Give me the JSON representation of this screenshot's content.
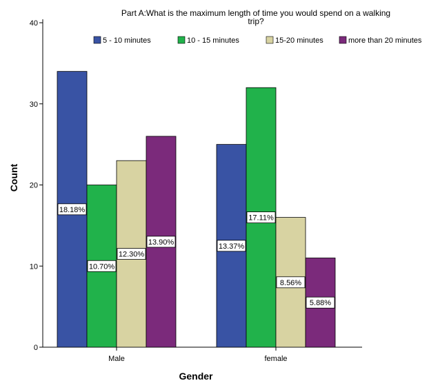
{
  "chart_data": {
    "type": "bar",
    "title_lines": [
      "Part A:What is the maximum length of time you would spend on a walking",
      "trip?"
    ],
    "xlabel": "Gender",
    "ylabel": "Count",
    "categories": [
      "Male",
      "female"
    ],
    "ylim": [
      0,
      40
    ],
    "yticks": [
      0,
      10,
      20,
      30,
      40
    ],
    "legend_position": "top",
    "grid": false,
    "series": [
      {
        "name": "5 - 10 minutes",
        "color": "#3953a4",
        "values": [
          34,
          25
        ],
        "labels": [
          "18.18%",
          "13.37%"
        ]
      },
      {
        "name": "10 - 15 minutes",
        "color": "#21b24b",
        "values": [
          20,
          32
        ],
        "labels": [
          "10.70%",
          "17.11%"
        ]
      },
      {
        "name": "15-20 minutes",
        "color": "#d8d3a2",
        "values": [
          23,
          16
        ],
        "labels": [
          "12.30%",
          "8.56%"
        ]
      },
      {
        "name": "more than 20 minutes",
        "color": "#7b2a7b",
        "values": [
          26,
          11
        ],
        "labels": [
          "13.90%",
          "5.88%"
        ]
      }
    ]
  }
}
